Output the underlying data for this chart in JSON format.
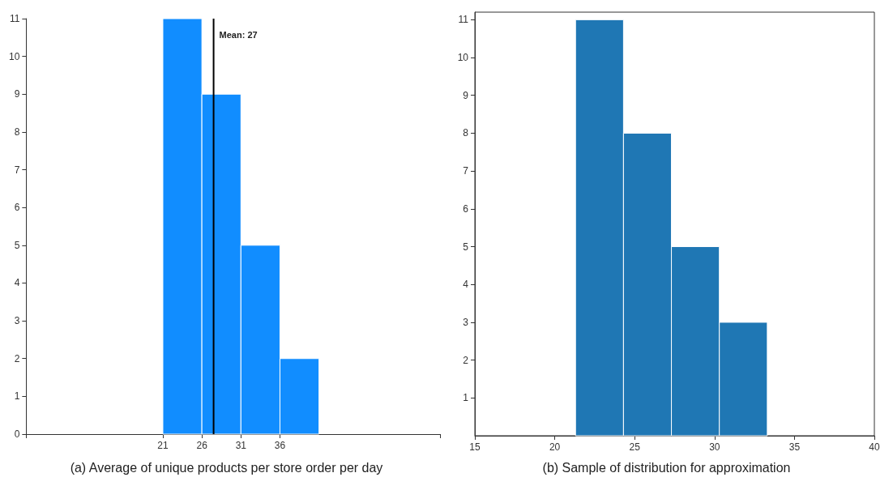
{
  "chart_data": [
    {
      "type": "histogram",
      "title": "(a) Average of unique products per store order per day",
      "bins": [
        21,
        26,
        31,
        36,
        41
      ],
      "values": [
        11,
        9,
        5,
        2
      ],
      "color": "#118dff",
      "xlim": [
        3.5,
        56.5
      ],
      "xticks": [
        {
          "value": 3.5,
          "label": null
        },
        21,
        26,
        31,
        36,
        {
          "value": 56.5,
          "label": null
        }
      ],
      "ylim": [
        0,
        11
      ],
      "yticks": [
        0,
        1,
        2,
        3,
        4,
        5,
        6,
        7,
        8,
        9,
        10,
        11
      ],
      "grid": false,
      "ref_lines": [
        {
          "axis": "x",
          "value": 27.5,
          "label": "Mean: 27",
          "color": "#000000"
        }
      ]
    },
    {
      "type": "histogram",
      "title": "(b) Sample of distribution for approximation",
      "bins": [
        21.3,
        24.3,
        27.3,
        30.3,
        33.3
      ],
      "values": [
        11,
        8,
        5,
        3
      ],
      "color": "#1f77b4",
      "xlim": [
        15,
        40
      ],
      "xticks": [
        15,
        20,
        25,
        30,
        35,
        40
      ],
      "ylim": [
        0,
        11.2
      ],
      "yticks": [
        1,
        2,
        3,
        4,
        5,
        6,
        7,
        8,
        9,
        10,
        11
      ],
      "grid": false
    }
  ]
}
